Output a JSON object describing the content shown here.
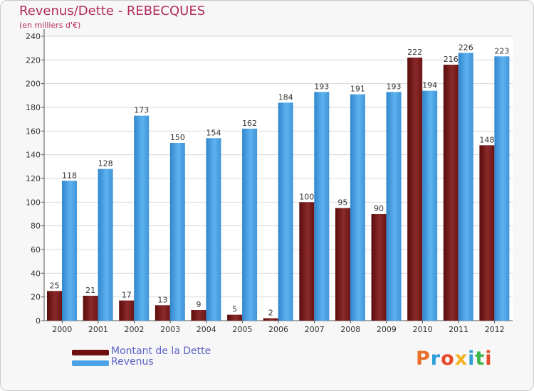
{
  "chart_data": {
    "type": "bar",
    "title": "Revenus/Dette - REBECQUES",
    "subtitle": "(en milliers d'€)",
    "categories": [
      "2000",
      "2001",
      "2002",
      "2003",
      "2004",
      "2005",
      "2006",
      "2007",
      "2008",
      "2009",
      "2010",
      "2011",
      "2012"
    ],
    "series": [
      {
        "name": "Montant de la Dette",
        "color": "#7a1b1b",
        "values": [
          25,
          21,
          17,
          13,
          9,
          5,
          2,
          100,
          95,
          90,
          222,
          216,
          148
        ]
      },
      {
        "name": "Revenus",
        "color": "#4aa3e8",
        "values": [
          118,
          128,
          173,
          150,
          154,
          162,
          184,
          193,
          191,
          193,
          194,
          226,
          223
        ]
      }
    ],
    "yticks": [
      0,
      20,
      40,
      60,
      80,
      100,
      120,
      140,
      160,
      180,
      200,
      220,
      240
    ],
    "ylim": [
      0,
      240
    ],
    "grid": true,
    "legend_position": "bottom-left"
  },
  "legend": {
    "items": [
      {
        "label": "Montant de la Dette",
        "color": "#6b0f0f"
      },
      {
        "label": "Revenus",
        "color": "#4aa3e8"
      }
    ]
  },
  "logo": {
    "text": "Proxiti",
    "colors": [
      "#e8702a",
      "#2f9fd8",
      "#e84b2a",
      "#f2b21c",
      "#2f9fd8",
      "#3fb54a",
      "#e84b2a"
    ]
  }
}
